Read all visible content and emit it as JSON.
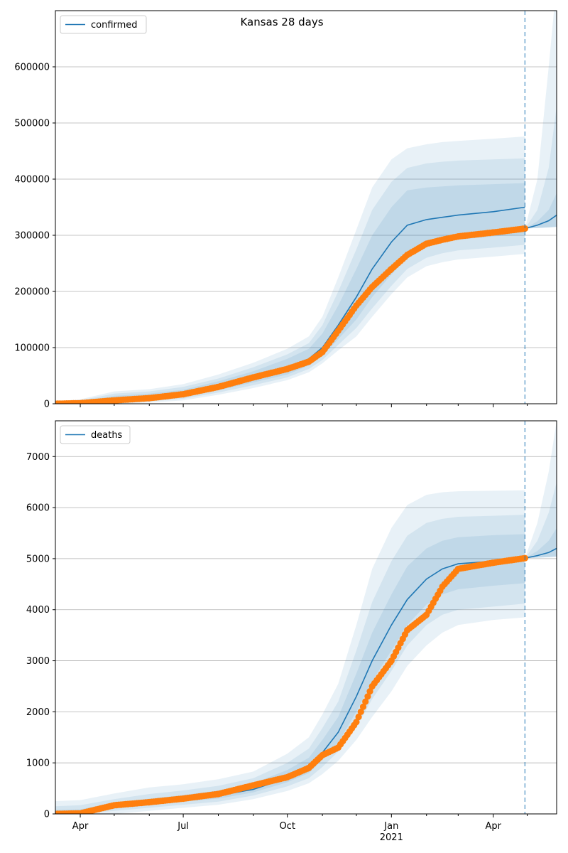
{
  "figure": {
    "title": "Kansas 28 days"
  },
  "chart_data": [
    {
      "type": "line",
      "title": "Kansas 28 days",
      "legend": "confirmed",
      "legend_position": "top-left",
      "grid": "horizontal",
      "xlim": [
        "2020-03-10",
        "2021-05-27"
      ],
      "ylim": [
        0,
        700000
      ],
      "yticks": [
        0,
        100000,
        200000,
        300000,
        400000,
        500000,
        600000
      ],
      "forecast_start": "2021-04-29",
      "series_color": "#1f77b4",
      "observed_color": "#ff7f0e",
      "band_color": "#1f77b4",
      "model": {
        "x": [
          "2020-03-10",
          "2020-04-01",
          "2020-05-01",
          "2020-06-01",
          "2020-07-01",
          "2020-08-01",
          "2020-09-01",
          "2020-10-01",
          "2020-10-20",
          "2020-11-01",
          "2020-11-15",
          "2020-12-01",
          "2020-12-15",
          "2021-01-01",
          "2021-01-15",
          "2021-02-01",
          "2021-02-15",
          "2021-03-01",
          "2021-04-01",
          "2021-04-29"
        ],
        "y": [
          1000,
          2000,
          8000,
          12000,
          18000,
          32000,
          48000,
          65000,
          80000,
          100000,
          140000,
          190000,
          240000,
          288000,
          318000,
          328000,
          332000,
          336000,
          342000,
          350000
        ],
        "bands": [
          {
            "lower": [
              0,
              0,
              2000,
              7000,
              12000,
              24000,
              38000,
              52000,
              68000,
              85000,
              115000,
              150000,
              190000,
              230000,
              260000,
              280000,
              287000,
              292000,
              298000,
              302000
            ],
            "upper": [
              2000,
              4000,
              14000,
              18000,
              25000,
              40000,
              58000,
              80000,
              98000,
              125000,
              175000,
              240000,
              300000,
              350000,
              380000,
              385000,
              387000,
              389000,
              391000,
              393000
            ]
          },
          {
            "lower": [
              0,
              0,
              0,
              4000,
              9000,
              20000,
              33000,
              47000,
              62000,
              78000,
              105000,
              135000,
              170000,
              210000,
              240000,
              260000,
              268000,
              273000,
              278000,
              283000
            ],
            "upper": [
              3000,
              6000,
              18000,
              22000,
              30000,
              45000,
              65000,
              88000,
              108000,
              140000,
              200000,
              275000,
              345000,
              395000,
              420000,
              428000,
              431000,
              433000,
              435000,
              437000
            ]
          },
          {
            "lower": [
              0,
              0,
              0,
              2000,
              6000,
              16000,
              28000,
              42000,
              56000,
              72000,
              95000,
              120000,
              155000,
              195000,
              225000,
              245000,
              252000,
              257000,
              262000,
              267000
            ],
            "upper": [
              4000,
              8000,
              22000,
              26000,
              35000,
              52000,
              73000,
              98000,
              120000,
              155000,
              225000,
              310000,
              385000,
              435000,
              455000,
              462000,
              466000,
              468000,
              472000,
              476000
            ]
          }
        ]
      },
      "observed": {
        "x": [
          "2020-03-10",
          "2020-04-01",
          "2020-05-01",
          "2020-06-01",
          "2020-07-01",
          "2020-08-01",
          "2020-09-01",
          "2020-10-01",
          "2020-10-20",
          "2020-11-01",
          "2020-11-15",
          "2020-12-01",
          "2020-12-15",
          "2021-01-01",
          "2021-01-15",
          "2021-02-01",
          "2021-02-15",
          "2021-03-01",
          "2021-04-01",
          "2021-04-29"
        ],
        "y": [
          0,
          1000,
          6000,
          10000,
          17000,
          30000,
          47000,
          62000,
          75000,
          92000,
          130000,
          175000,
          208000,
          240000,
          265000,
          285000,
          292000,
          298000,
          305000,
          312000
        ]
      },
      "forecast": {
        "x": [
          "2021-04-29",
          "2021-05-10",
          "2021-05-20",
          "2021-05-27"
        ],
        "y": [
          312000,
          318000,
          326000,
          336000
        ],
        "bands": [
          {
            "lower": [
              312000,
              313000,
              314000,
              315000
            ],
            "upper": [
              312000,
              325000,
              345000,
              375000
            ]
          },
          {
            "lower": [
              312000,
              313000,
              314000,
              315000
            ],
            "upper": [
              312000,
              345000,
              420000,
              530000
            ]
          },
          {
            "lower": [
              312000,
              313000,
              314000,
              315000
            ],
            "upper": [
              312000,
              400000,
              600000,
              750000
            ]
          }
        ]
      }
    },
    {
      "type": "line",
      "legend": "deaths",
      "legend_position": "top-left",
      "grid": "horizontal",
      "xlim": [
        "2020-03-10",
        "2021-05-27"
      ],
      "ylim": [
        0,
        7700
      ],
      "yticks": [
        0,
        1000,
        2000,
        3000,
        4000,
        5000,
        6000,
        7000
      ],
      "forecast_start": "2021-04-29",
      "series_color": "#1f77b4",
      "observed_color": "#ff7f0e",
      "band_color": "#1f77b4",
      "x_tick_labels": [
        {
          "date": "2020-04-01",
          "label": "Apr"
        },
        {
          "date": "2020-07-01",
          "label": "Jul"
        },
        {
          "date": "2020-10-01",
          "label": "Oct"
        },
        {
          "date": "2021-01-01",
          "label": "Jan",
          "sublabel": "2021"
        },
        {
          "date": "2021-04-01",
          "label": "Apr"
        }
      ],
      "model": {
        "x": [
          "2020-03-10",
          "2020-04-01",
          "2020-05-01",
          "2020-06-01",
          "2020-07-01",
          "2020-08-01",
          "2020-09-01",
          "2020-10-01",
          "2020-10-20",
          "2020-11-01",
          "2020-11-15",
          "2020-12-01",
          "2020-12-15",
          "2021-01-01",
          "2021-01-15",
          "2021-02-01",
          "2021-02-15",
          "2021-03-01",
          "2021-04-01",
          "2021-04-29"
        ],
        "y": [
          10,
          20,
          150,
          220,
          290,
          360,
          480,
          700,
          900,
          1200,
          1600,
          2300,
          3000,
          3700,
          4200,
          4600,
          4800,
          4900,
          4950,
          5000
        ],
        "bands": [
          {
            "lower": [
              0,
              0,
              100,
              170,
              240,
              300,
              420,
              620,
              800,
              1060,
              1400,
              2000,
              2600,
              3200,
              3700,
              4100,
              4300,
              4400,
              4470,
              4520
            ],
            "upper": [
              80,
              90,
              220,
              300,
              370,
              460,
              600,
              860,
              1100,
              1450,
              1900,
              2750,
              3550,
              4300,
              4850,
              5200,
              5350,
              5420,
              5460,
              5480
            ]
          },
          {
            "lower": [
              0,
              0,
              60,
              120,
              180,
              240,
              360,
              540,
              700,
              920,
              1220,
              1700,
              2250,
              2800,
              3300,
              3700,
              3900,
              4000,
              4060,
              4120
            ],
            "upper": [
              150,
              170,
              290,
              390,
              460,
              550,
              700,
              1000,
              1280,
              1680,
              2200,
              3200,
              4150,
              4950,
              5450,
              5700,
              5780,
              5820,
              5840,
              5860
            ]
          },
          {
            "lower": [
              0,
              0,
              0,
              60,
              120,
              180,
              290,
              450,
              600,
              780,
              1040,
              1450,
              1900,
              2400,
              2900,
              3300,
              3550,
              3700,
              3800,
              3850
            ],
            "upper": [
              250,
              270,
              400,
              520,
              580,
              680,
              830,
              1180,
              1500,
              1950,
              2550,
              3700,
              4800,
              5600,
              6050,
              6250,
              6300,
              6320,
              6330,
              6340
            ]
          }
        ]
      },
      "observed": {
        "x": [
          "2020-03-10",
          "2020-04-01",
          "2020-05-01",
          "2020-06-01",
          "2020-07-01",
          "2020-08-01",
          "2020-09-01",
          "2020-10-01",
          "2020-10-20",
          "2020-11-01",
          "2020-11-15",
          "2020-12-01",
          "2020-12-15",
          "2021-01-01",
          "2021-01-15",
          "2021-02-01",
          "2021-02-15",
          "2021-03-01",
          "2021-04-01",
          "2021-04-29"
        ],
        "y": [
          0,
          10,
          170,
          230,
          300,
          390,
          560,
          720,
          900,
          1150,
          1300,
          1800,
          2500,
          3000,
          3600,
          3900,
          4450,
          4800,
          4920,
          5010
        ]
      },
      "forecast": {
        "x": [
          "2021-04-29",
          "2021-05-10",
          "2021-05-20",
          "2021-05-27"
        ],
        "y": [
          5010,
          5060,
          5120,
          5200
        ],
        "bands": [
          {
            "lower": [
              5010,
              5020,
              5030,
              5040
            ],
            "upper": [
              5010,
              5150,
              5350,
              5600
            ]
          },
          {
            "lower": [
              5010,
              5020,
              5030,
              5040
            ],
            "upper": [
              5010,
              5350,
              5900,
              6500
            ]
          },
          {
            "lower": [
              5010,
              5020,
              5030,
              5040
            ],
            "upper": [
              5010,
              5700,
              6700,
              7700
            ]
          }
        ]
      }
    }
  ]
}
